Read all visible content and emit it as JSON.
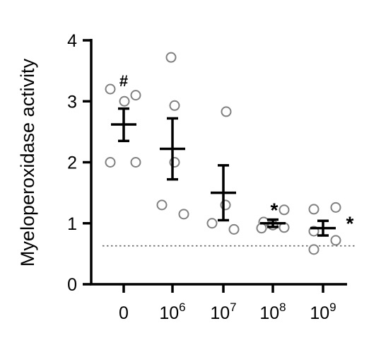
{
  "chart_data": {
    "type": "scatter",
    "title": "",
    "xlabel": "",
    "ylabel": "Myeloperoxidase activity",
    "ylim": [
      0,
      4
    ],
    "yticks": [
      "0",
      "1",
      "2",
      "3",
      "4"
    ],
    "categories": [
      {
        "base": "0",
        "exp": ""
      },
      {
        "base": "10",
        "exp": "6"
      },
      {
        "base": "10",
        "exp": "7"
      },
      {
        "base": "10",
        "exp": "8"
      },
      {
        "base": "10",
        "exp": "9"
      }
    ],
    "groups": [
      {
        "points": [
          3.2,
          3.0,
          3.1,
          2.0,
          2.0
        ],
        "mean": 2.62,
        "sem_low": 2.35,
        "sem_high": 2.88,
        "annotation": "#"
      },
      {
        "points": [
          3.72,
          2.93,
          2.0,
          1.3,
          1.15
        ],
        "mean": 2.22,
        "sem_low": 1.72,
        "sem_high": 2.72,
        "annotation": ""
      },
      {
        "points": [
          2.83,
          1.3,
          1.0,
          0.9
        ],
        "mean": 1.5,
        "sem_low": 1.05,
        "sem_high": 1.95,
        "annotation": ""
      },
      {
        "points": [
          1.02,
          1.22,
          0.92,
          0.97,
          0.93
        ],
        "mean": 1.0,
        "sem_low": 0.94,
        "sem_high": 1.06,
        "annotation": "*"
      },
      {
        "points": [
          1.23,
          1.26,
          0.87,
          0.72,
          0.57
        ],
        "mean": 0.92,
        "sem_low": 0.8,
        "sem_high": 1.04,
        "annotation": "*"
      }
    ],
    "reference_line": 0.63,
    "grid": false,
    "legend": "none"
  }
}
